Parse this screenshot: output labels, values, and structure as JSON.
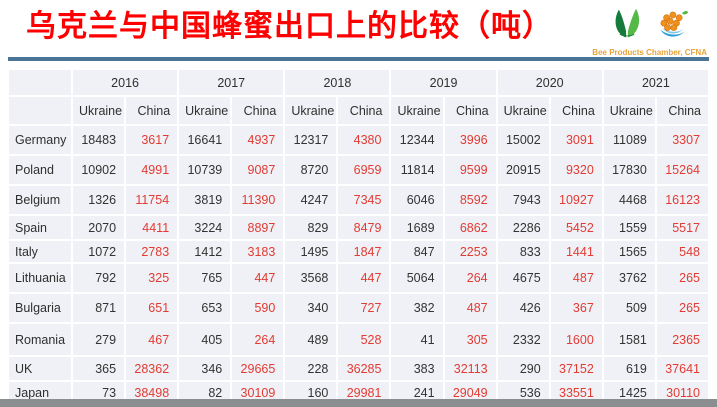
{
  "slide": {
    "title": "乌克兰与中国蜂蜜出口上的比较（吨）",
    "logo_caption": "Bee Products Chamber, CFNA"
  },
  "table": {
    "years": [
      "2016",
      "2017",
      "2018",
      "2019",
      "2020",
      "2021"
    ],
    "origin_columns": [
      "Ukraine",
      "China"
    ],
    "rows": [
      {
        "country": "Germany",
        "values": [
          18483,
          3617,
          16641,
          4937,
          12317,
          4380,
          12344,
          3996,
          15002,
          3091,
          11089,
          3307
        ]
      },
      {
        "country": "Poland",
        "values": [
          10902,
          4991,
          10739,
          9087,
          8720,
          6959,
          11814,
          9599,
          20915,
          9320,
          17830,
          15264
        ]
      },
      {
        "country": "Belgium",
        "values": [
          1326,
          11754,
          3819,
          11390,
          4247,
          7345,
          6046,
          8592,
          7943,
          10927,
          4468,
          16123
        ]
      },
      {
        "country": "Spain",
        "values": [
          2070,
          4411,
          3224,
          8897,
          829,
          8479,
          1689,
          6862,
          2286,
          5452,
          1559,
          5517
        ]
      },
      {
        "country": "Italy",
        "values": [
          1072,
          2783,
          1412,
          3183,
          1495,
          1847,
          847,
          2253,
          833,
          1441,
          1565,
          548
        ]
      },
      {
        "country": "Lithuania",
        "values": [
          792,
          325,
          765,
          447,
          3568,
          447,
          5064,
          264,
          4675,
          487,
          3762,
          265
        ]
      },
      {
        "country": "Bulgaria",
        "values": [
          871,
          651,
          653,
          590,
          340,
          727,
          382,
          487,
          426,
          367,
          509,
          265
        ]
      },
      {
        "country": "Romania",
        "values": [
          279,
          467,
          405,
          264,
          489,
          528,
          41,
          305,
          2332,
          1600,
          1581,
          2365
        ]
      },
      {
        "country": "UK",
        "values": [
          365,
          28362,
          346,
          29665,
          228,
          36285,
          383,
          32113,
          290,
          37152,
          619,
          37641
        ]
      },
      {
        "country": "Japan",
        "values": [
          73,
          38498,
          82,
          30109,
          160,
          29981,
          241,
          29049,
          536,
          33551,
          1425,
          30110
        ]
      }
    ]
  },
  "colors": {
    "title_red": "#fe0000",
    "china_value_red": "#e23b33",
    "ukraine_value_black": "#333333",
    "cell_background": "#f0f1f6",
    "title_rule_blue": "#4a7496",
    "logo_caption_gold": "#e8a33c",
    "bottom_bar_gray": "#8b8e91"
  }
}
